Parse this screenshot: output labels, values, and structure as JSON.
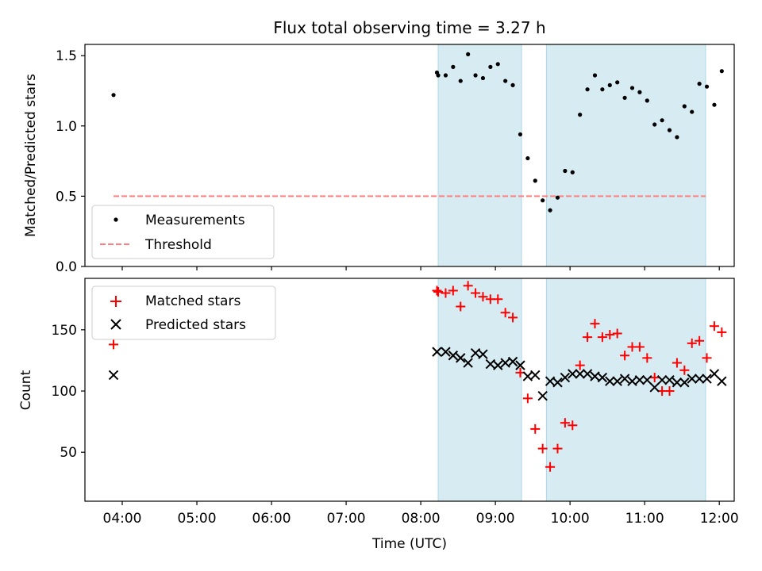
{
  "chart_data": [
    {
      "type": "scatter",
      "title": "Flux total observing time = 3.27 h",
      "xlabel": "",
      "ylabel": "Matched/Predicted stars",
      "ylim": [
        0,
        1.58
      ],
      "yticks": [
        "0.0",
        "0.5",
        "1.0",
        "1.5"
      ],
      "legend": {
        "placement": "lower-left",
        "entries": [
          "Measurements",
          "Threshold"
        ]
      },
      "shaded_intervals": [
        [
          "08:14",
          "09:21"
        ],
        [
          "09:41",
          "11:49"
        ]
      ],
      "threshold": {
        "name": "Threshold",
        "value": 0.5,
        "x_range": [
          "03:53",
          "11:49"
        ]
      },
      "series": [
        {
          "name": "Measurements",
          "x": [
            "03:53",
            "08:13",
            "08:14",
            "08:20",
            "08:26",
            "08:32",
            "08:38",
            "08:44",
            "08:50",
            "08:56",
            "09:02",
            "09:08",
            "09:14",
            "09:20",
            "09:26",
            "09:32",
            "09:38",
            "09:44",
            "09:50",
            "09:56",
            "10:02",
            "10:08",
            "10:14",
            "10:20",
            "10:26",
            "10:32",
            "10:38",
            "10:44",
            "10:50",
            "10:56",
            "11:02",
            "11:08",
            "11:14",
            "11:20",
            "11:26",
            "11:32",
            "11:38",
            "11:44",
            "11:50",
            "11:56",
            "12:02"
          ],
          "values": [
            1.22,
            1.38,
            1.36,
            1.36,
            1.42,
            1.32,
            1.51,
            1.36,
            1.34,
            1.42,
            1.44,
            1.32,
            1.29,
            0.94,
            0.77,
            0.61,
            0.47,
            0.4,
            0.49,
            0.68,
            0.67,
            1.08,
            1.26,
            1.36,
            1.26,
            1.29,
            1.31,
            1.2,
            1.27,
            1.24,
            1.18,
            1.01,
            1.04,
            0.97,
            0.92,
            1.14,
            1.1,
            1.3,
            1.28,
            1.15,
            1.39
          ]
        }
      ]
    },
    {
      "type": "scatter",
      "title": "",
      "xlabel": "Time (UTC)",
      "ylabel": "Count",
      "ylim": [
        10,
        192
      ],
      "yticks": [
        "50",
        "100",
        "150"
      ],
      "xticks": [
        "04:00",
        "05:00",
        "06:00",
        "07:00",
        "08:00",
        "09:00",
        "10:00",
        "11:00",
        "12:00"
      ],
      "legend": {
        "placement": "upper-left",
        "entries": [
          "Matched stars",
          "Predicted stars"
        ]
      },
      "shaded_intervals": [
        [
          "08:14",
          "09:21"
        ],
        [
          "09:41",
          "11:49"
        ]
      ],
      "series": [
        {
          "name": "Matched stars",
          "x": [
            "03:53",
            "08:13",
            "08:14",
            "08:20",
            "08:26",
            "08:32",
            "08:38",
            "08:44",
            "08:50",
            "08:56",
            "09:02",
            "09:08",
            "09:14",
            "09:20",
            "09:26",
            "09:32",
            "09:38",
            "09:44",
            "09:50",
            "09:56",
            "10:02",
            "10:08",
            "10:14",
            "10:20",
            "10:26",
            "10:32",
            "10:38",
            "10:44",
            "10:50",
            "10:56",
            "11:02",
            "11:08",
            "11:14",
            "11:20",
            "11:26",
            "11:32",
            "11:38",
            "11:44",
            "11:50",
            "11:56",
            "12:02"
          ],
          "values": [
            138,
            182,
            181,
            180,
            182,
            169,
            186,
            180,
            177,
            175,
            175,
            164,
            160,
            115,
            94,
            69,
            53,
            38,
            53,
            74,
            72,
            121,
            144,
            155,
            144,
            146,
            147,
            129,
            136,
            136,
            127,
            111,
            100,
            100,
            123,
            117,
            139,
            141,
            127,
            153,
            148
          ]
        },
        {
          "name": "Predicted stars",
          "x": [
            "03:53",
            "08:13",
            "08:20",
            "08:26",
            "08:32",
            "08:38",
            "08:44",
            "08:50",
            "08:56",
            "09:02",
            "09:08",
            "09:14",
            "09:20",
            "09:26",
            "09:32",
            "09:38",
            "09:44",
            "09:50",
            "09:56",
            "10:02",
            "10:08",
            "10:14",
            "10:20",
            "10:26",
            "10:32",
            "10:38",
            "10:44",
            "10:50",
            "10:56",
            "11:02",
            "11:08",
            "11:14",
            "11:20",
            "11:26",
            "11:32",
            "11:38",
            "11:44",
            "11:50",
            "11:56",
            "12:02"
          ],
          "values": [
            113,
            132,
            132,
            129,
            127,
            123,
            131,
            130,
            122,
            121,
            123,
            124,
            121,
            112,
            113,
            96,
            108,
            107,
            111,
            114,
            114,
            114,
            112,
            111,
            108,
            108,
            110,
            108,
            109,
            109,
            103,
            109,
            109,
            107,
            107,
            110,
            110,
            110,
            114,
            108
          ]
        }
      ]
    }
  ]
}
